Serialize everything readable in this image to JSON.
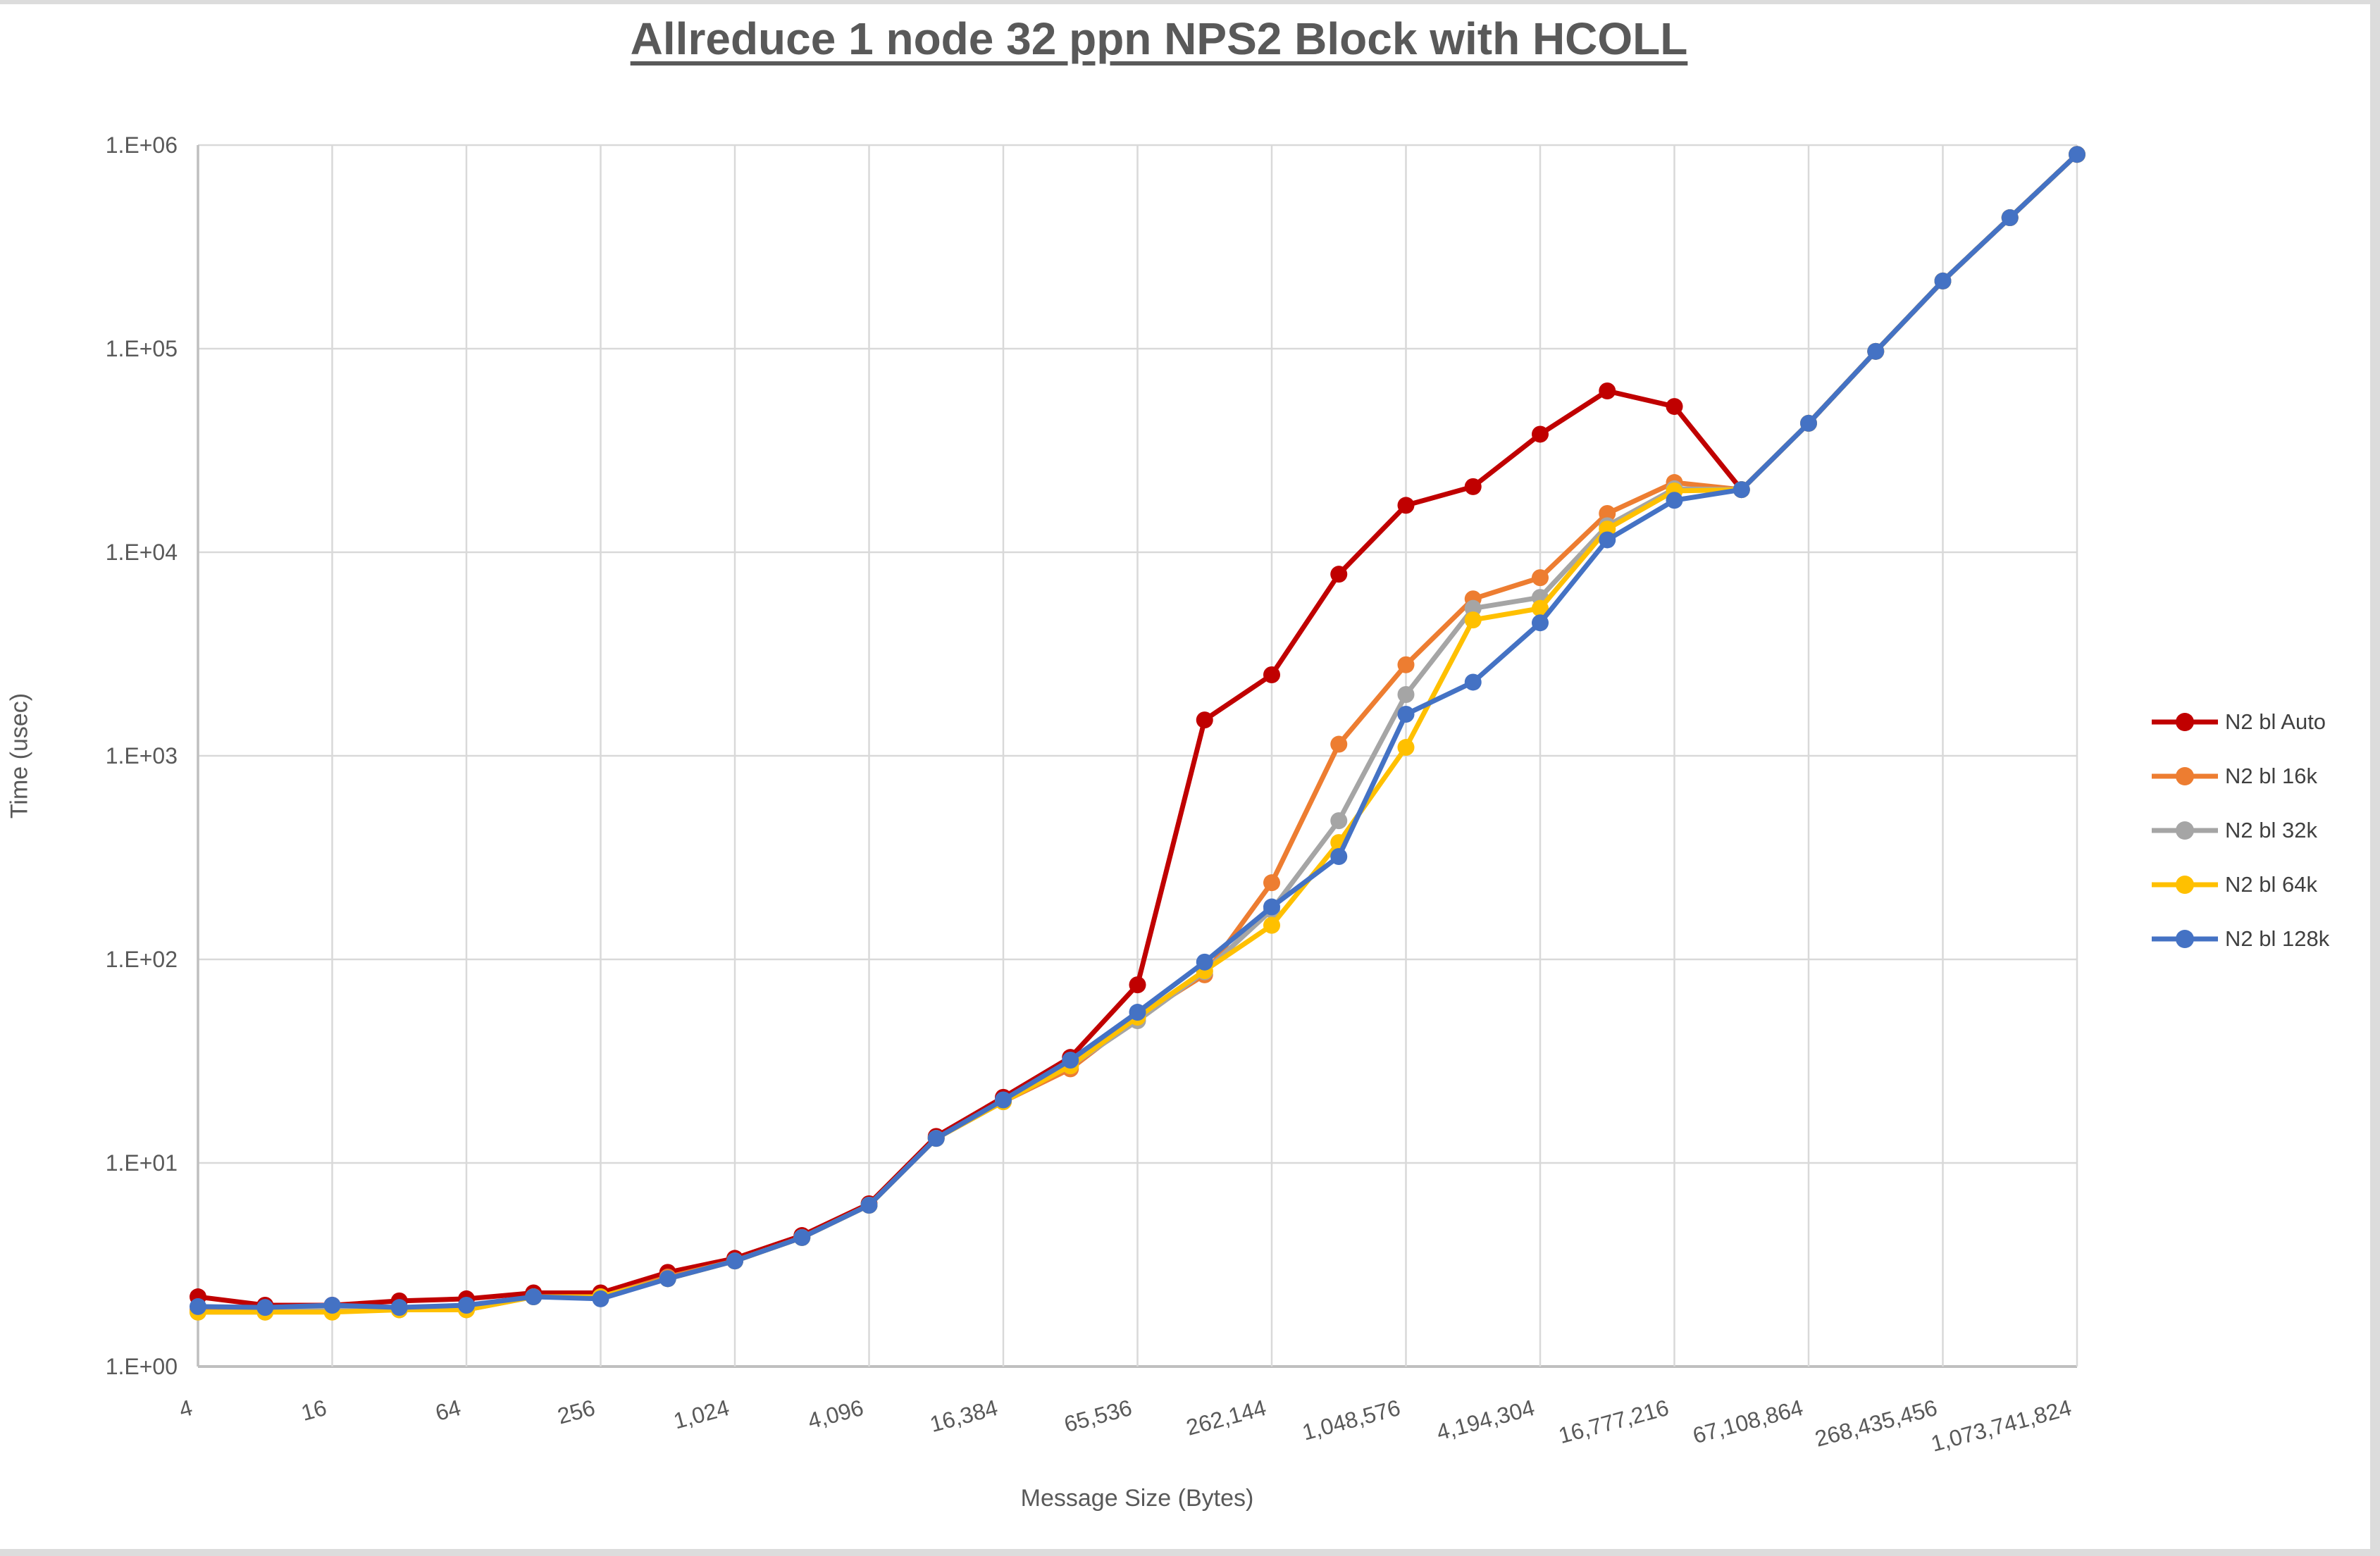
{
  "window": {
    "edges": "light-gray screenshot frame on top, right and bottom"
  },
  "colors": {
    "grid": "#d9d9d9",
    "axis": "#bfbfbf",
    "tick_text": "#595959",
    "title_text": "#595959",
    "legend_text": "#404040",
    "background": "#ffffff"
  },
  "chart_data": {
    "type": "line",
    "title": "Allreduce 1 node 32 ppn NPS2 Block with HCOLL",
    "xlabel": "Message Size (Bytes)",
    "ylabel": "Time (usec)",
    "x_scale": "log2",
    "y_scale": "log10",
    "ylim": [
      1,
      1000000
    ],
    "grid": true,
    "legend_position": "right",
    "x": [
      4,
      8,
      16,
      32,
      64,
      128,
      256,
      512,
      1024,
      2048,
      4096,
      8192,
      16384,
      32768,
      65536,
      131072,
      262144,
      524288,
      1048576,
      2097152,
      4194304,
      8388608,
      16777216,
      33554432,
      67108864,
      134217728,
      268435456,
      536870912,
      1073741824
    ],
    "x_tick_labels": [
      "4",
      "16",
      "64",
      "256",
      "1,024",
      "4,096",
      "16,384",
      "65,536",
      "262,144",
      "1,048,576",
      "4,194,304",
      "16,777,216",
      "67,108,864",
      "268,435,456",
      "1,073,741,824"
    ],
    "y_tick_labels": [
      "1.E+00",
      "1.E+01",
      "1.E+02",
      "1.E+03",
      "1.E+04",
      "1.E+05",
      "1.E+06"
    ],
    "series": [
      {
        "name": "N2 bl Auto",
        "color": "#C00000",
        "values": [
          2.2,
          2.0,
          2.0,
          2.1,
          2.15,
          2.3,
          2.3,
          2.9,
          3.4,
          4.4,
          6.3,
          13.5,
          21,
          33,
          75,
          1500,
          2500,
          7800,
          17000,
          21000,
          38000,
          62000,
          52000,
          20300,
          43000,
          97000,
          215000,
          440000,
          900000
        ]
      },
      {
        "name": "N2 bl 16k",
        "color": "#ED7D31",
        "values": [
          1.9,
          1.9,
          1.9,
          1.9,
          1.95,
          2.2,
          2.2,
          2.75,
          3.3,
          4.3,
          6.2,
          13.2,
          20,
          29,
          52,
          84,
          238,
          1140,
          2800,
          5900,
          7500,
          15500,
          22000,
          20300,
          43000,
          97000,
          215000,
          440000,
          900000
        ]
      },
      {
        "name": "N2 bl 32k",
        "color": "#A5A5A5",
        "values": [
          1.85,
          1.85,
          1.9,
          1.9,
          1.9,
          2.2,
          2.2,
          2.7,
          3.3,
          4.3,
          6.2,
          13.2,
          20,
          30,
          50,
          87,
          175,
          480,
          2000,
          5300,
          6000,
          13500,
          20500,
          20300,
          43000,
          97000,
          215000,
          440000,
          900000
        ]
      },
      {
        "name": "N2 bl 64k",
        "color": "#FFC000",
        "values": [
          1.85,
          1.85,
          1.85,
          1.9,
          1.9,
          2.2,
          2.2,
          2.7,
          3.3,
          4.3,
          6.2,
          13.2,
          20,
          30,
          52,
          88,
          147,
          375,
          1100,
          4650,
          5300,
          13000,
          20000,
          20300,
          43000,
          97000,
          215000,
          440000,
          900000
        ]
      },
      {
        "name": "N2 bl 128k",
        "color": "#4472C4",
        "values": [
          1.97,
          1.95,
          2.0,
          1.95,
          2.0,
          2.2,
          2.15,
          2.7,
          3.3,
          4.3,
          6.2,
          13.2,
          20.4,
          32,
          55,
          97,
          181,
          320,
          1600,
          2300,
          4500,
          11500,
          18000,
          20300,
          43000,
          97000,
          215000,
          440000,
          900000
        ]
      }
    ]
  }
}
